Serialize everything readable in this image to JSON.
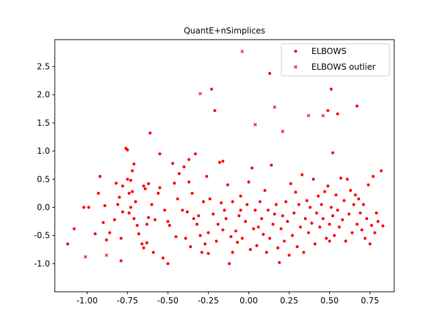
{
  "chart_data": {
    "type": "scatter",
    "title": "QuantE+nSimplices",
    "xlabel": "",
    "ylabel": "",
    "xlim": [
      -1.2,
      0.9
    ],
    "ylim": [
      -1.5,
      2.98
    ],
    "x_ticks": [
      "-1.00",
      "-0.75",
      "-0.50",
      "-0.25",
      "0.00",
      "0.25",
      "0.50",
      "0.75"
    ],
    "x_tick_values": [
      -1.0,
      -0.75,
      -0.5,
      -0.25,
      0.0,
      0.25,
      0.5,
      0.75
    ],
    "y_ticks": [
      "-1.0",
      "-0.5",
      "0.0",
      "0.5",
      "1.0",
      "1.5",
      "2.0",
      "2.5"
    ],
    "y_tick_values": [
      -1.0,
      -0.5,
      0.0,
      0.5,
      1.0,
      1.5,
      2.0,
      2.5
    ],
    "grid": false,
    "legend_position": "top-right",
    "color": "#ff0000",
    "series": [
      {
        "name": "ELBOWS",
        "marker": "dot",
        "points": [
          [
            -1.12,
            -0.65
          ],
          [
            -1.08,
            -0.38
          ],
          [
            -1.02,
            0.0
          ],
          [
            -0.99,
            0.0
          ],
          [
            -0.95,
            -0.47
          ],
          [
            -0.93,
            0.25
          ],
          [
            -0.92,
            0.55
          ],
          [
            -0.9,
            -0.27
          ],
          [
            -0.89,
            0.03
          ],
          [
            -0.88,
            -0.58
          ],
          [
            -0.86,
            -0.45
          ],
          [
            -0.83,
            -0.22
          ],
          [
            -0.82,
            0.43
          ],
          [
            -0.81,
            0.05
          ],
          [
            -0.8,
            0.18
          ],
          [
            -0.79,
            -0.55
          ],
          [
            -0.79,
            -0.95
          ],
          [
            -0.78,
            0.38
          ],
          [
            -0.78,
            -0.08
          ],
          [
            -0.76,
            1.05
          ],
          [
            -0.75,
            1.02
          ],
          [
            -0.75,
            0.5
          ],
          [
            -0.74,
            0.25
          ],
          [
            -0.74,
            -0.1
          ],
          [
            -0.73,
            0.48
          ],
          [
            -0.73,
            0.0
          ],
          [
            -0.72,
            0.65
          ],
          [
            -0.72,
            0.28
          ],
          [
            -0.71,
            0.77
          ],
          [
            -0.71,
            -0.2
          ],
          [
            -0.7,
            0.1
          ],
          [
            -0.69,
            -0.32
          ],
          [
            -0.68,
            -0.47
          ],
          [
            -0.66,
            -0.65
          ],
          [
            -0.65,
            0.38
          ],
          [
            -0.65,
            -0.72
          ],
          [
            -0.64,
            0.33
          ],
          [
            -0.63,
            -0.63
          ],
          [
            -0.63,
            -0.3
          ],
          [
            -0.62,
            0.42
          ],
          [
            -0.62,
            -0.18
          ],
          [
            -0.61,
            1.32
          ],
          [
            -0.6,
            0.05
          ],
          [
            -0.59,
            -0.8
          ],
          [
            -0.58,
            -0.22
          ],
          [
            -0.56,
            0.25
          ],
          [
            -0.55,
            0.95
          ],
          [
            -0.55,
            0.35
          ],
          [
            -0.53,
            -0.9
          ],
          [
            -0.52,
            -0.05
          ],
          [
            -0.5,
            -1.0
          ],
          [
            -0.5,
            -0.25
          ],
          [
            -0.49,
            -0.32
          ],
          [
            -0.47,
            0.78
          ],
          [
            -0.46,
            0.43
          ],
          [
            -0.45,
            -0.52
          ],
          [
            -0.44,
            0.15
          ],
          [
            -0.43,
            0.6
          ],
          [
            -0.41,
            -0.05
          ],
          [
            -0.4,
            0.72
          ],
          [
            -0.39,
            -0.55
          ],
          [
            -0.38,
            -0.08
          ],
          [
            -0.37,
            0.85
          ],
          [
            -0.37,
            0.45
          ],
          [
            -0.36,
            -0.7
          ],
          [
            -0.35,
            0.25
          ],
          [
            -0.34,
            -0.2
          ],
          [
            -0.33,
            0.95
          ],
          [
            -0.32,
            -0.3
          ],
          [
            -0.31,
            -0.15
          ],
          [
            -0.3,
            -0.5
          ],
          [
            -0.29,
            -0.8
          ],
          [
            -0.28,
            0.1
          ],
          [
            -0.27,
            -0.65
          ],
          [
            -0.26,
            0.55
          ],
          [
            -0.25,
            -0.45
          ],
          [
            -0.25,
            -0.82
          ],
          [
            -0.24,
            0.15
          ],
          [
            -0.23,
            2.1
          ],
          [
            -0.22,
            -0.12
          ],
          [
            -0.21,
            1.72
          ],
          [
            -0.2,
            -0.6
          ],
          [
            -0.19,
            -0.3
          ],
          [
            -0.18,
            0.8
          ],
          [
            -0.17,
            0.08
          ],
          [
            -0.16,
            -0.4
          ],
          [
            -0.16,
            0.82
          ],
          [
            -0.15,
            -0.05
          ],
          [
            -0.14,
            -0.2
          ],
          [
            -0.13,
            0.4
          ],
          [
            -0.12,
            -1.0
          ],
          [
            -0.11,
            -0.52
          ],
          [
            -0.1,
            -0.8
          ],
          [
            -0.1,
            0.1
          ],
          [
            -0.08,
            -0.42
          ],
          [
            -0.07,
            -0.62
          ],
          [
            -0.06,
            -0.15
          ],
          [
            -0.05,
            0.2
          ],
          [
            -0.05,
            -0.05
          ],
          [
            -0.04,
            -0.55
          ],
          [
            -0.02,
            -0.25
          ],
          [
            -0.01,
            0.05
          ],
          [
            0.0,
            0.45
          ],
          [
            0.01,
            -0.75
          ],
          [
            0.02,
            0.7
          ],
          [
            0.03,
            -0.38
          ],
          [
            0.04,
            -0.05
          ],
          [
            0.05,
            -0.68
          ],
          [
            0.06,
            -0.35
          ],
          [
            0.07,
            0.1
          ],
          [
            0.08,
            -0.2
          ],
          [
            0.09,
            -0.48
          ],
          [
            0.1,
            0.3
          ],
          [
            0.11,
            -0.8
          ],
          [
            0.12,
            -0.05
          ],
          [
            0.13,
            -0.55
          ],
          [
            0.13,
            2.38
          ],
          [
            0.14,
            0.75
          ],
          [
            0.15,
            -0.3
          ],
          [
            0.16,
            -0.12
          ],
          [
            0.17,
            0.05
          ],
          [
            0.18,
            -0.72
          ],
          [
            0.19,
            -0.98
          ],
          [
            0.2,
            -0.38
          ],
          [
            0.21,
            -0.15
          ],
          [
            0.22,
            -0.6
          ],
          [
            0.23,
            0.1
          ],
          [
            0.24,
            -0.25
          ],
          [
            0.25,
            -0.85
          ],
          [
            0.26,
            0.42
          ],
          [
            0.27,
            -0.5
          ],
          [
            0.28,
            -0.1
          ],
          [
            0.29,
            0.27
          ],
          [
            0.3,
            -0.7
          ],
          [
            0.31,
            0.05
          ],
          [
            0.32,
            -0.35
          ],
          [
            0.33,
            0.58
          ],
          [
            0.34,
            -0.8
          ],
          [
            0.35,
            -0.2
          ],
          [
            0.36,
            0.12
          ],
          [
            0.37,
            -0.45
          ],
          [
            0.38,
            0.0
          ],
          [
            0.39,
            -0.28
          ],
          [
            0.4,
            0.5
          ],
          [
            0.41,
            -0.65
          ],
          [
            0.42,
            -0.1
          ],
          [
            0.43,
            0.2
          ],
          [
            0.44,
            -0.35
          ],
          [
            0.45,
            0.05
          ],
          [
            0.46,
            -0.2
          ],
          [
            0.47,
            0.28
          ],
          [
            0.48,
            -0.55
          ],
          [
            0.49,
            1.72
          ],
          [
            0.49,
            0.38
          ],
          [
            0.5,
            -0.6
          ],
          [
            0.5,
            -0.3
          ],
          [
            0.51,
            2.1
          ],
          [
            0.51,
            0.0
          ],
          [
            0.52,
            0.97
          ],
          [
            0.52,
            -0.15
          ],
          [
            0.53,
            -0.5
          ],
          [
            0.54,
            0.22
          ],
          [
            0.55,
            1.66
          ],
          [
            0.55,
            -0.05
          ],
          [
            0.56,
            -0.35
          ],
          [
            0.57,
            0.52
          ],
          [
            0.58,
            -0.22
          ],
          [
            0.59,
            0.12
          ],
          [
            0.6,
            -0.6
          ],
          [
            0.61,
            0.5
          ],
          [
            0.62,
            -0.12
          ],
          [
            0.63,
            0.3
          ],
          [
            0.64,
            -0.45
          ],
          [
            0.65,
            0.05
          ],
          [
            0.66,
            0.22
          ],
          [
            0.67,
            -0.3
          ],
          [
            0.67,
            1.8
          ],
          [
            0.68,
            0.15
          ],
          [
            0.69,
            -0.1
          ],
          [
            0.7,
            -0.4
          ],
          [
            0.71,
            0.05
          ],
          [
            0.72,
            -0.55
          ],
          [
            0.73,
            -0.2
          ],
          [
            0.74,
            0.4
          ],
          [
            0.75,
            -0.65
          ],
          [
            0.76,
            -0.32
          ],
          [
            0.77,
            0.55
          ],
          [
            0.78,
            -0.45
          ],
          [
            0.79,
            -0.1
          ],
          [
            0.8,
            -0.25
          ],
          [
            0.82,
            0.65
          ],
          [
            0.83,
            -0.33
          ]
        ]
      },
      {
        "name": "ELBOWS outlier",
        "marker": "x",
        "points": [
          [
            -1.01,
            -0.88
          ],
          [
            -0.88,
            -0.85
          ],
          [
            -0.3,
            2.02
          ],
          [
            -0.04,
            2.77
          ],
          [
            0.04,
            1.47
          ],
          [
            0.16,
            1.78
          ],
          [
            0.21,
            1.35
          ],
          [
            0.37,
            1.63
          ],
          [
            0.46,
            1.63
          ]
        ]
      }
    ]
  }
}
